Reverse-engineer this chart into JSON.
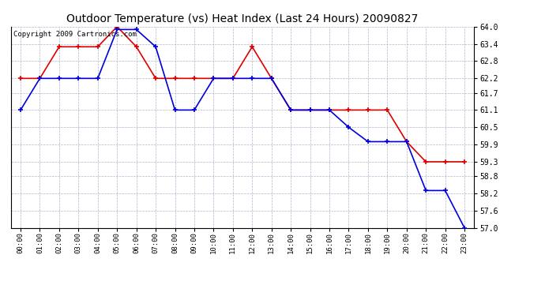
{
  "title": "Outdoor Temperature (vs) Heat Index (Last 24 Hours) 20090827",
  "copyright_text": "Copyright 2009 Cartronics.com",
  "hours": [
    "00:00",
    "01:00",
    "02:00",
    "03:00",
    "04:00",
    "05:00",
    "06:00",
    "07:00",
    "08:00",
    "09:00",
    "10:00",
    "11:00",
    "12:00",
    "13:00",
    "14:00",
    "15:00",
    "16:00",
    "17:00",
    "18:00",
    "19:00",
    "20:00",
    "21:00",
    "22:00",
    "23:00"
  ],
  "temp_blue": [
    61.1,
    62.2,
    62.2,
    62.2,
    62.2,
    63.9,
    63.9,
    63.3,
    61.1,
    61.1,
    62.2,
    62.2,
    62.2,
    62.2,
    61.1,
    61.1,
    61.1,
    60.5,
    60.0,
    60.0,
    60.0,
    58.3,
    58.3,
    57.0
  ],
  "heat_red": [
    62.2,
    62.2,
    63.3,
    63.3,
    63.3,
    64.0,
    63.3,
    62.2,
    62.2,
    62.2,
    62.2,
    62.2,
    63.3,
    62.2,
    61.1,
    61.1,
    61.1,
    61.1,
    61.1,
    61.1,
    60.0,
    59.3,
    59.3,
    59.3
  ],
  "ylim_min": 57.0,
  "ylim_max": 64.0,
  "yticks": [
    57.0,
    57.6,
    58.2,
    58.8,
    59.3,
    59.9,
    60.5,
    61.1,
    61.7,
    62.2,
    62.8,
    63.4,
    64.0
  ],
  "blue_color": "#0000dd",
  "red_color": "#dd0000",
  "bg_color": "#ffffff",
  "grid_color": "#aaaacc",
  "title_fontsize": 10,
  "copyright_fontsize": 6.5
}
